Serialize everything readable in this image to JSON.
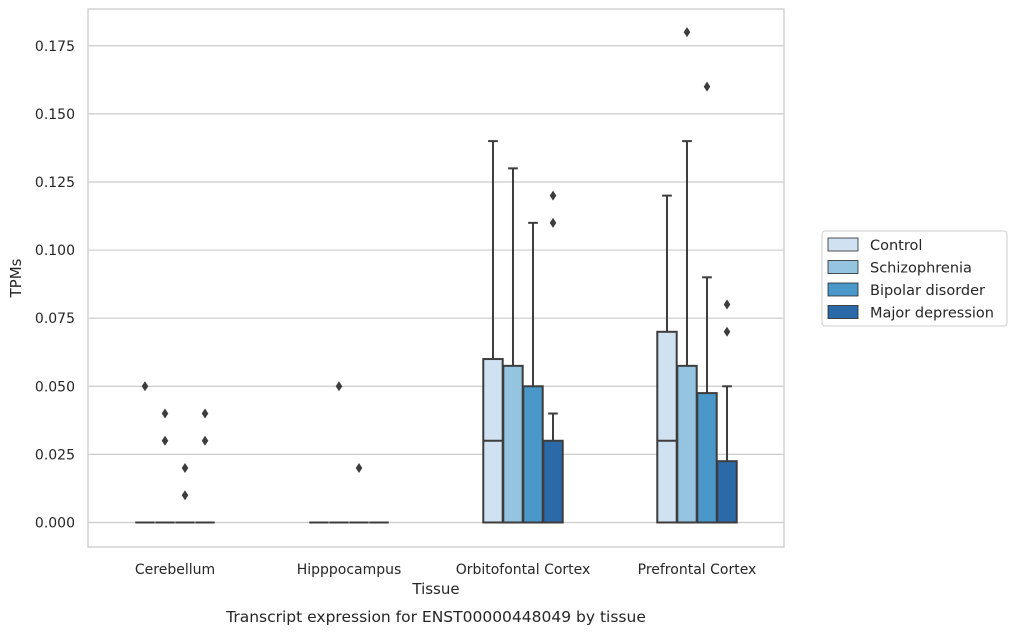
{
  "chart_data": {
    "type": "box",
    "title": "",
    "caption": "Transcript expression for ENST00000448049 by tissue",
    "xlabel": "Tissue",
    "ylabel": "TPMs",
    "ylim": [
      -0.009,
      0.1885
    ],
    "yticks": [
      "0.000",
      "0.025",
      "0.050",
      "0.075",
      "0.100",
      "0.125",
      "0.150",
      "0.175"
    ],
    "ytick_values": [
      0,
      0.025,
      0.05,
      0.075,
      0.1,
      0.125,
      0.15,
      0.175
    ],
    "categories": [
      "Cerebellum",
      "Hipppocampus",
      "Orbitofontal Cortex",
      "Prefrontal Cortex"
    ],
    "grid": "horizontal",
    "legend_position": "right",
    "series": [
      {
        "name": "Control",
        "color": "#d0e1f2",
        "boxes": [
          {
            "q1": 0,
            "median": 0,
            "q3": 0,
            "whisker_low": 0,
            "whisker_high": 0,
            "outliers": [
              0.05
            ]
          },
          {
            "q1": 0,
            "median": 0,
            "q3": 0,
            "whisker_low": 0,
            "whisker_high": 0,
            "outliers": []
          },
          {
            "q1": 0,
            "median": 0.03,
            "q3": 0.06,
            "whisker_low": 0,
            "whisker_high": 0.14,
            "outliers": []
          },
          {
            "q1": 0,
            "median": 0.03,
            "q3": 0.07,
            "whisker_low": 0,
            "whisker_high": 0.12,
            "outliers": []
          }
        ]
      },
      {
        "name": "Schizophrenia",
        "color": "#94c4df",
        "boxes": [
          {
            "q1": 0,
            "median": 0,
            "q3": 0,
            "whisker_low": 0,
            "whisker_high": 0,
            "outliers": [
              0.04,
              0.03
            ]
          },
          {
            "q1": 0,
            "median": 0,
            "q3": 0,
            "whisker_low": 0,
            "whisker_high": 0,
            "outliers": [
              0.05
            ]
          },
          {
            "q1": 0,
            "median": 0,
            "q3": 0.0575,
            "whisker_low": 0,
            "whisker_high": 0.13,
            "outliers": []
          },
          {
            "q1": 0,
            "median": 0,
            "q3": 0.0575,
            "whisker_low": 0,
            "whisker_high": 0.14,
            "outliers": [
              0.18
            ]
          }
        ]
      },
      {
        "name": "Bipolar disorder",
        "color": "#4a98c9",
        "boxes": [
          {
            "q1": 0,
            "median": 0,
            "q3": 0,
            "whisker_low": 0,
            "whisker_high": 0,
            "outliers": [
              0.02,
              0.01
            ]
          },
          {
            "q1": 0,
            "median": 0,
            "q3": 0,
            "whisker_low": 0,
            "whisker_high": 0,
            "outliers": [
              0.02
            ]
          },
          {
            "q1": 0,
            "median": 0,
            "q3": 0.05,
            "whisker_low": 0,
            "whisker_high": 0.11,
            "outliers": []
          },
          {
            "q1": 0,
            "median": 0,
            "q3": 0.0475,
            "whisker_low": 0,
            "whisker_high": 0.09,
            "outliers": [
              0.16
            ]
          }
        ]
      },
      {
        "name": "Major depression",
        "color": "#2b6aa9",
        "boxes": [
          {
            "q1": 0,
            "median": 0,
            "q3": 0,
            "whisker_low": 0,
            "whisker_high": 0,
            "outliers": [
              0.04,
              0.03
            ]
          },
          {
            "q1": 0,
            "median": 0,
            "q3": 0,
            "whisker_low": 0,
            "whisker_high": 0,
            "outliers": []
          },
          {
            "q1": 0,
            "median": 0,
            "q3": 0.03,
            "whisker_low": 0,
            "whisker_high": 0.04,
            "outliers": [
              0.12,
              0.11
            ]
          },
          {
            "q1": 0,
            "median": 0,
            "q3": 0.0225,
            "whisker_low": 0,
            "whisker_high": 0.05,
            "outliers": [
              0.08,
              0.07
            ]
          }
        ]
      }
    ]
  }
}
